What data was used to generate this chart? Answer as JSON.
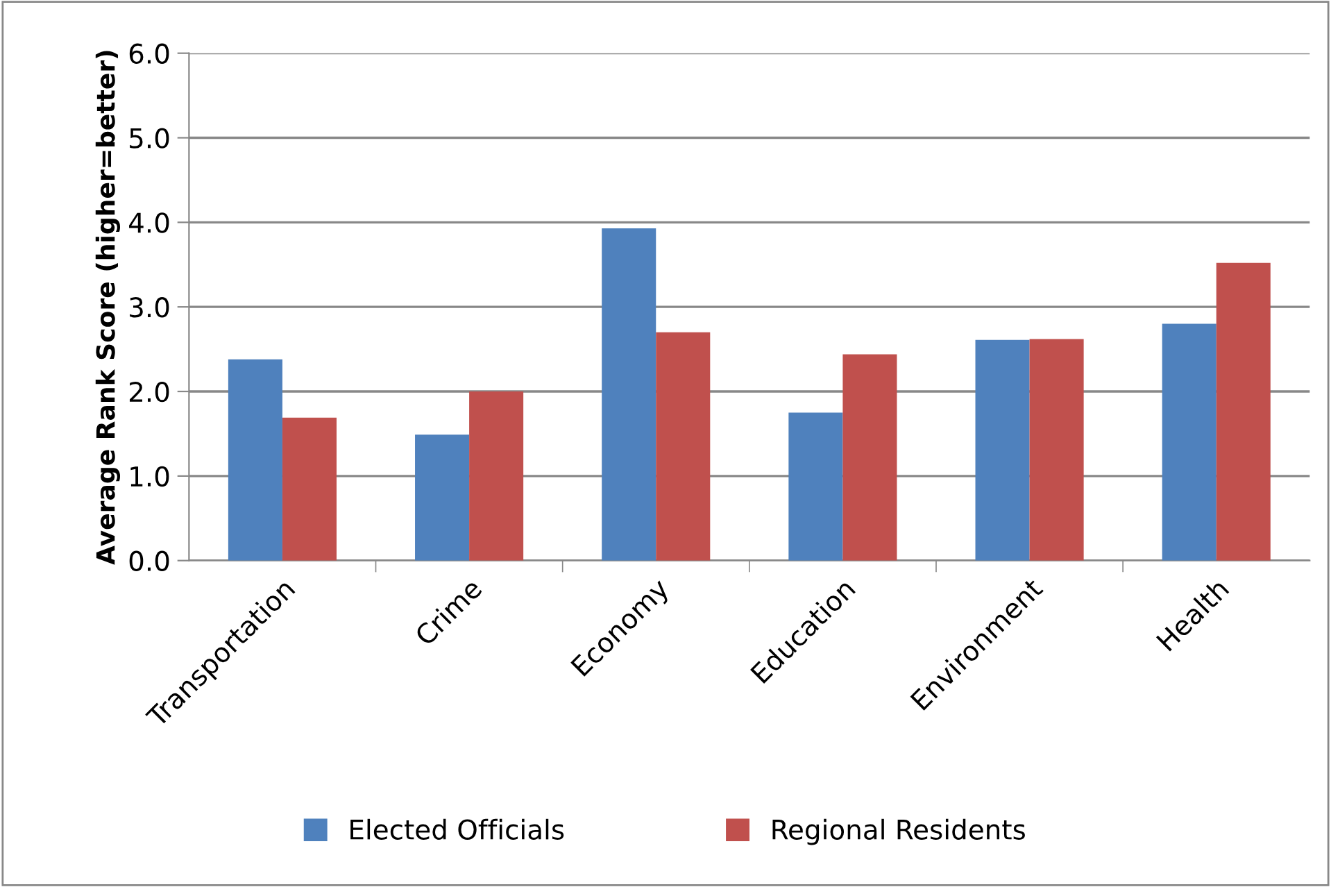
{
  "chart_data": {
    "type": "bar",
    "ylabel": "Average Rank Score (higher=better)",
    "categories": [
      "Transportation",
      "Crime",
      "Economy",
      "Education",
      "Environment",
      "Health"
    ],
    "series": [
      {
        "name": "Elected Officials",
        "color": "#4f81bd",
        "values": [
          2.38,
          1.49,
          3.93,
          1.75,
          2.61,
          2.8
        ]
      },
      {
        "name": "Regional Residents",
        "color": "#c0504d",
        "values": [
          1.69,
          2.0,
          2.7,
          2.44,
          2.62,
          3.52
        ]
      }
    ],
    "ylim": [
      0,
      6
    ],
    "yticks": [
      {
        "value": 0,
        "label": "0.0"
      },
      {
        "value": 1,
        "label": "1.0"
      },
      {
        "value": 2,
        "label": "2.0"
      },
      {
        "value": 3,
        "label": "3.0"
      },
      {
        "value": 4,
        "label": "4.0"
      },
      {
        "value": 5,
        "label": "5.0"
      },
      {
        "value": 6,
        "label": "6.0"
      }
    ],
    "grid": "y",
    "legend": "bottom"
  }
}
